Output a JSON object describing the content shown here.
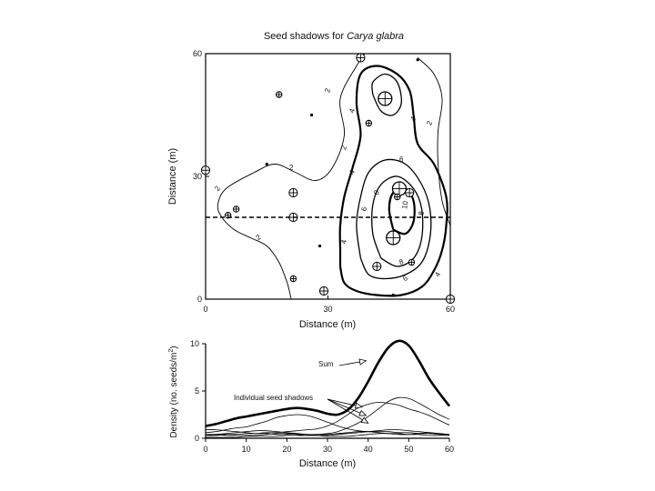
{
  "chart_data": [
    {
      "type": "contour",
      "title_prefix": "Seed shadows for ",
      "title_species": "Carya glabra",
      "xlabel": "Distance (m)",
      "ylabel": "Distance (m)",
      "xlim": [
        0,
        60
      ],
      "ylim": [
        0,
        60
      ],
      "x_ticks": [
        "0",
        "30",
        "60"
      ],
      "y_ticks": [
        "0",
        "30",
        "60"
      ],
      "transect_y": 20,
      "contours": [
        {
          "level": "2",
          "points": [
            [
              21,
              0
            ],
            [
              20,
              4
            ],
            [
              18,
              9
            ],
            [
              15,
              13
            ],
            [
              11,
              15
            ],
            [
              7,
              17
            ],
            [
              4,
              20
            ],
            [
              3,
              23
            ],
            [
              5,
              27
            ],
            [
              12,
              31
            ],
            [
              17,
              33
            ],
            [
              22,
              31
            ],
            [
              27,
              29
            ],
            [
              31,
              32
            ],
            [
              34,
              40
            ],
            [
              33,
              49
            ],
            [
              37,
              57
            ],
            [
              39,
              60
            ]
          ]
        },
        {
          "level": "2",
          "points": [
            [
              52,
              59
            ],
            [
              56,
              55
            ],
            [
              58,
              49
            ],
            [
              57,
              41
            ],
            [
              57,
              33
            ],
            [
              58,
              24
            ],
            [
              60,
              18
            ]
          ]
        },
        {
          "level": "4",
          "points": [
            [
              33,
              8
            ],
            [
              34,
              4
            ],
            [
              37,
              2
            ],
            [
              42,
              1
            ],
            [
              48,
              1
            ],
            [
              53,
              3
            ],
            [
              56,
              7
            ],
            [
              58,
              12
            ],
            [
              59,
              18
            ],
            [
              59,
              25
            ],
            [
              56,
              33
            ],
            [
              52,
              38
            ],
            [
              51,
              45
            ],
            [
              50,
              51
            ],
            [
              47,
              55
            ],
            [
              42,
              57
            ],
            [
              38,
              55
            ],
            [
              37,
              48
            ],
            [
              38,
              40
            ],
            [
              36,
              32
            ],
            [
              34,
              25
            ],
            [
              33,
              18
            ],
            [
              33,
              12
            ],
            [
              33,
              8
            ]
          ]
        },
        {
          "level": "6",
          "points": [
            [
              38,
              10
            ],
            [
              40,
              6
            ],
            [
              44,
              5
            ],
            [
              49,
              6
            ],
            [
              53,
              9
            ],
            [
              55,
              15
            ],
            [
              55,
              22
            ],
            [
              53,
              28
            ],
            [
              49,
              33
            ],
            [
              44,
              34
            ],
            [
              40,
              31
            ],
            [
              38,
              25
            ],
            [
              37,
              18
            ],
            [
              38,
              10
            ]
          ]
        },
        {
          "level": "8",
          "points": [
            [
              43,
              10
            ],
            [
              47,
              8
            ],
            [
              51,
              10
            ],
            [
              53,
              15
            ],
            [
              53,
              22
            ],
            [
              51,
              27
            ],
            [
              47,
              30
            ],
            [
              43,
              28
            ],
            [
              41,
              23
            ],
            [
              41,
              16
            ],
            [
              43,
              10
            ]
          ]
        },
        {
          "level": "10",
          "points": [
            [
              46,
              17
            ],
            [
              49,
              16
            ],
            [
              51,
              19
            ],
            [
              51,
              24
            ],
            [
              49,
              27
            ],
            [
              46,
              26
            ],
            [
              45,
              22
            ],
            [
              46,
              17
            ]
          ]
        },
        {
          "level": "",
          "points": [
            [
              41,
              50
            ],
            [
              43,
              46
            ],
            [
              46,
              45
            ],
            [
              48,
              48
            ],
            [
              47,
              53
            ],
            [
              44,
              55
            ],
            [
              41,
              53
            ],
            [
              41,
              50
            ]
          ]
        }
      ],
      "contour_labels": [
        {
          "text": "2",
          "x": 3,
          "y": 27,
          "angle": -50
        },
        {
          "text": "2",
          "x": 21,
          "y": 32,
          "angle": 0
        },
        {
          "text": "2",
          "x": 13,
          "y": 15,
          "angle": -35
        },
        {
          "text": "2",
          "x": 34,
          "y": 37,
          "angle": -75
        },
        {
          "text": "2",
          "x": 30,
          "y": 51,
          "angle": -75
        },
        {
          "text": "2",
          "x": 55,
          "y": 43,
          "angle": -70
        },
        {
          "text": "4",
          "x": 36,
          "y": 46,
          "angle": -70
        },
        {
          "text": "4",
          "x": 36,
          "y": 31,
          "angle": -70
        },
        {
          "text": "4",
          "x": 34,
          "y": 14,
          "angle": -80
        },
        {
          "text": "4",
          "x": 51,
          "y": 44,
          "angle": -60
        },
        {
          "text": "4",
          "x": 57,
          "y": 6,
          "angle": -60
        },
        {
          "text": "6",
          "x": 48,
          "y": 34,
          "angle": 0
        },
        {
          "text": "6",
          "x": 39,
          "y": 22,
          "angle": -80
        },
        {
          "text": "6",
          "x": 49,
          "y": 5,
          "angle": -30
        },
        {
          "text": "8",
          "x": 42,
          "y": 26,
          "angle": -60
        },
        {
          "text": "8",
          "x": 53,
          "y": 21,
          "angle": -80
        },
        {
          "text": "8",
          "x": 48,
          "y": 9,
          "angle": -20
        },
        {
          "text": "10",
          "x": 49,
          "y": 23,
          "angle": -80
        }
      ],
      "trees": [
        {
          "x": 0,
          "y": 31.5,
          "size": 2
        },
        {
          "x": 18,
          "y": 50,
          "size": 1
        },
        {
          "x": 26,
          "y": 45,
          "size": 0
        },
        {
          "x": 15,
          "y": 33,
          "size": 0
        },
        {
          "x": 7.5,
          "y": 22,
          "size": 1
        },
        {
          "x": 5.5,
          "y": 20.5,
          "size": 1
        },
        {
          "x": 21.5,
          "y": 26,
          "size": 2
        },
        {
          "x": 21.5,
          "y": 20,
          "size": 2
        },
        {
          "x": 28,
          "y": 13,
          "size": 0
        },
        {
          "x": 21.5,
          "y": 5,
          "size": 1
        },
        {
          "x": 29,
          "y": 2,
          "size": 2
        },
        {
          "x": 38,
          "y": 59,
          "size": 2
        },
        {
          "x": 52,
          "y": 58.5,
          "size": 0
        },
        {
          "x": 44,
          "y": 49,
          "size": 3
        },
        {
          "x": 40,
          "y": 43,
          "size": 1
        },
        {
          "x": 47.5,
          "y": 27,
          "size": 3
        },
        {
          "x": 50,
          "y": 26,
          "size": 2
        },
        {
          "x": 47,
          "y": 25,
          "size": 1
        },
        {
          "x": 46,
          "y": 15,
          "size": 3
        },
        {
          "x": 42,
          "y": 8,
          "size": 2
        },
        {
          "x": 50.5,
          "y": 9,
          "size": 1
        },
        {
          "x": 46,
          "y": 1,
          "size": 0
        },
        {
          "x": 60,
          "y": 0,
          "size": 2
        }
      ]
    },
    {
      "type": "line",
      "xlabel": "Distance (m)",
      "ylabel": "Density (no. seeds/m",
      "ylabel_sup": "2",
      "ylabel_close": ")",
      "xlim": [
        0,
        60
      ],
      "ylim": [
        0,
        10
      ],
      "x_ticks": [
        "0",
        "10",
        "20",
        "30",
        "40",
        "50",
        "60"
      ],
      "y_ticks": [
        "0",
        "5",
        "10"
      ],
      "x": [
        0,
        2.5,
        5,
        7.5,
        10,
        12.5,
        15,
        17.5,
        20,
        22.5,
        25,
        27.5,
        30,
        32.5,
        35,
        37.5,
        40,
        42.5,
        45,
        47.5,
        50,
        52.5,
        55,
        57.5,
        60
      ],
      "series": [
        {
          "name": "Sum",
          "role": "sum",
          "values": [
            1.3,
            1.5,
            1.8,
            2.1,
            2.3,
            2.5,
            2.7,
            2.9,
            3.1,
            3.2,
            3.1,
            2.9,
            2.6,
            2.5,
            3.0,
            4.2,
            6.0,
            8.0,
            9.6,
            10.3,
            9.8,
            8.2,
            6.3,
            4.8,
            3.4
          ]
        },
        {
          "name": "",
          "role": "individual",
          "values": [
            0.6,
            0.7,
            0.9,
            1.1,
            1.2,
            1.5,
            1.8,
            2.2,
            2.4,
            2.5,
            2.4,
            2.1,
            1.7,
            1.3,
            1.0,
            0.8,
            0.7,
            0.7,
            0.7,
            0.6,
            0.6,
            0.5,
            0.5,
            0.4,
            0.4
          ]
        },
        {
          "name": "",
          "role": "individual",
          "values": [
            0.3,
            0.3,
            0.4,
            0.4,
            0.5,
            0.5,
            0.6,
            0.6,
            0.7,
            0.8,
            0.9,
            1.0,
            1.3,
            1.8,
            2.5,
            3.2,
            3.6,
            3.8,
            3.7,
            3.5,
            3.1,
            2.8,
            2.4,
            1.9,
            1.4
          ]
        },
        {
          "name": "",
          "role": "individual",
          "values": [
            0.1,
            0.1,
            0.1,
            0.1,
            0.2,
            0.2,
            0.2,
            0.2,
            0.3,
            0.3,
            0.3,
            0.4,
            0.5,
            0.7,
            1.1,
            1.6,
            2.3,
            3.1,
            3.9,
            4.3,
            4.2,
            3.7,
            3.1,
            2.5,
            2.0
          ]
        },
        {
          "name": "",
          "role": "individual",
          "values": [
            0.9,
            0.9,
            0.8,
            0.7,
            0.6,
            0.5,
            0.5,
            0.4,
            0.4,
            0.4,
            0.3,
            0.3,
            0.3,
            0.4,
            0.5,
            0.6,
            0.7,
            0.8,
            0.9,
            0.9,
            0.8,
            0.7,
            0.6,
            0.5,
            0.4
          ]
        },
        {
          "name": "",
          "role": "individual",
          "values": [
            0.3,
            0.4,
            0.5,
            0.6,
            0.7,
            0.8,
            0.8,
            0.7,
            0.6,
            0.5,
            0.4,
            0.4,
            0.4,
            0.5,
            0.6,
            0.7,
            0.7,
            0.6,
            0.5,
            0.4,
            0.4,
            0.5,
            0.6,
            0.5,
            0.4
          ]
        },
        {
          "name": "",
          "role": "individual",
          "values": [
            0.4,
            0.4,
            0.3,
            0.3,
            0.3,
            0.3,
            0.4,
            0.5,
            0.5,
            0.5,
            0.4,
            0.3,
            0.2,
            0.2,
            0.2,
            0.3,
            0.4,
            0.5,
            0.5,
            0.5,
            0.4,
            0.4,
            0.3,
            0.3,
            0.3
          ]
        }
      ],
      "annotations": [
        {
          "text": "Sum",
          "target_x": 39.5,
          "target_y": 8.2
        },
        {
          "text": "Individual seed shadows",
          "targets": [
            [
              38.5,
              3.3
            ],
            [
              39.5,
              2.4
            ],
            [
              40,
              1.6
            ]
          ]
        }
      ]
    }
  ]
}
